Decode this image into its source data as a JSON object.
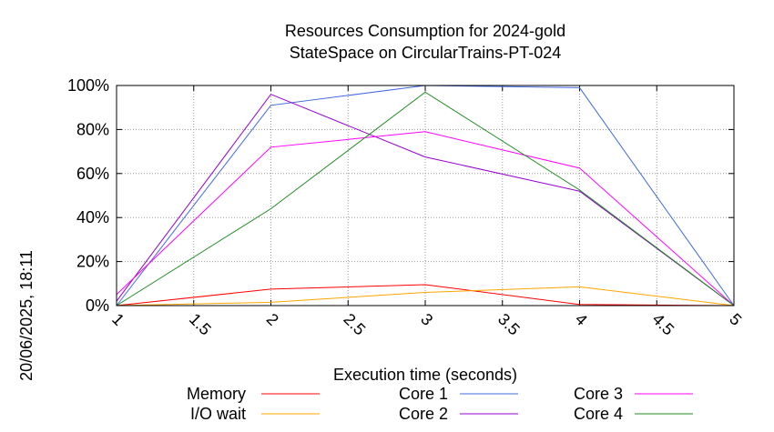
{
  "chart_data": {
    "type": "line",
    "title_line1": "Resources Consumption for 2024-gold",
    "title_line2": "StateSpace on CircularTrains-PT-024",
    "xlabel": "Execution time (seconds)",
    "ylabel": "",
    "side_label": "20/06/2025, 18:11",
    "xlim": [
      1,
      5
    ],
    "ylim": [
      0,
      100
    ],
    "x_ticks": [
      {
        "value": 1,
        "label": "1"
      },
      {
        "value": 1.5,
        "label": "1.5"
      },
      {
        "value": 2,
        "label": "2"
      },
      {
        "value": 2.5,
        "label": "2.5"
      },
      {
        "value": 3,
        "label": "3"
      },
      {
        "value": 3.5,
        "label": "3.5"
      },
      {
        "value": 4,
        "label": "4"
      },
      {
        "value": 4.5,
        "label": "4.5"
      },
      {
        "value": 5,
        "label": "5"
      }
    ],
    "y_ticks": [
      {
        "value": 0,
        "label": "0%"
      },
      {
        "value": 20,
        "label": "20%"
      },
      {
        "value": 40,
        "label": "40%"
      },
      {
        "value": 60,
        "label": "60%"
      },
      {
        "value": 80,
        "label": "80%"
      },
      {
        "value": 100,
        "label": "100%"
      }
    ],
    "grid": true,
    "legend_placement": "bottom",
    "x": [
      1,
      2,
      3,
      4,
      5
    ],
    "series": [
      {
        "name": "Memory",
        "color": "#ff0000",
        "values": [
          0,
          7.5,
          9.5,
          0.5,
          0
        ]
      },
      {
        "name": "I/O wait",
        "color": "#ffa500",
        "values": [
          0,
          1.5,
          6,
          8.5,
          0
        ]
      },
      {
        "name": "Core 1",
        "color": "#4169e1",
        "values": [
          0,
          91,
          100,
          99,
          0
        ]
      },
      {
        "name": "Core 2",
        "color": "#9400d3",
        "values": [
          2,
          96,
          67.5,
          52,
          0
        ]
      },
      {
        "name": "Core 3",
        "color": "#ff00ff",
        "values": [
          5,
          72,
          79,
          62.5,
          0
        ]
      },
      {
        "name": "Core 4",
        "color": "#228b22",
        "values": [
          0,
          44,
          97,
          52.5,
          0
        ]
      }
    ]
  }
}
